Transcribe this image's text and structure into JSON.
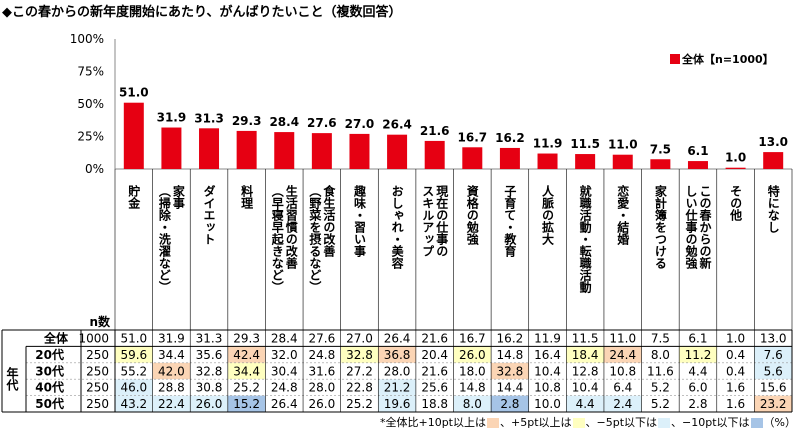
{
  "title": "◆この春からの新年度開始にあたり、がんばりたいこと（複数回答）",
  "colors": {
    "bar": "#e60012",
    "plus10": "#fbd5b5",
    "plus5": "#ffffc0",
    "minus5": "#dcf0fa",
    "minus10": "#a6c4e6",
    "border": "#000000"
  },
  "chart_data": {
    "type": "bar",
    "yticks": [
      "100%",
      "75%",
      "50%",
      "25%",
      "0%"
    ],
    "ylim": [
      0,
      100
    ],
    "legend": {
      "label": "全体【n=1000】",
      "position": "top-right"
    },
    "categories": [
      "貯金",
      "家事（掃除・洗濯など）",
      "ダイエット",
      "料理",
      "生活習慣の改善（早寝早起きなど）",
      "食生活の改善（野菜を摂るなど）",
      "趣味・習い事",
      "おしゃれ・美容",
      "現在の仕事のスキルアップ",
      "資格の勉強",
      "子育て・教育",
      "人脈の拡大",
      "就職活動・転職活動",
      "恋愛・結婚",
      "家計簿をつける",
      "この春からの新しい仕事の勉強",
      "その他",
      "特になし"
    ],
    "values": [
      51.0,
      31.9,
      31.3,
      29.3,
      28.4,
      27.6,
      27.0,
      26.4,
      21.6,
      16.7,
      16.2,
      11.9,
      11.5,
      11.0,
      7.5,
      6.1,
      1.0,
      13.0
    ],
    "table": {
      "n_header": "n数",
      "group_label": "年代",
      "rows": [
        {
          "label": "全体",
          "n": "1000",
          "values": [
            "51.0",
            "31.9",
            "31.3",
            "29.3",
            "28.4",
            "27.6",
            "27.0",
            "26.4",
            "21.6",
            "16.7",
            "16.2",
            "11.9",
            "11.5",
            "11.0",
            "7.5",
            "6.1",
            "1.0",
            "13.0"
          ]
        },
        {
          "label": "20代",
          "n": "250",
          "values": [
            "59.6",
            "34.4",
            "35.6",
            "42.4",
            "32.0",
            "24.8",
            "32.8",
            "36.8",
            "20.4",
            "26.0",
            "14.8",
            "16.4",
            "18.4",
            "24.4",
            "8.0",
            "11.2",
            "0.4",
            "7.6"
          ]
        },
        {
          "label": "30代",
          "n": "250",
          "values": [
            "55.2",
            "42.0",
            "32.8",
            "34.4",
            "30.4",
            "31.6",
            "27.2",
            "28.0",
            "21.6",
            "18.0",
            "32.8",
            "10.4",
            "12.8",
            "10.8",
            "11.6",
            "4.4",
            "0.4",
            "5.6"
          ]
        },
        {
          "label": "40代",
          "n": "250",
          "values": [
            "46.0",
            "28.8",
            "30.8",
            "25.2",
            "24.8",
            "28.0",
            "22.8",
            "21.2",
            "25.6",
            "14.8",
            "14.4",
            "10.8",
            "10.4",
            "6.4",
            "5.2",
            "6.0",
            "1.6",
            "15.6"
          ]
        },
        {
          "label": "50代",
          "n": "250",
          "values": [
            "43.2",
            "22.4",
            "26.0",
            "15.2",
            "26.4",
            "26.0",
            "25.2",
            "19.6",
            "18.8",
            "8.0",
            "2.8",
            "10.0",
            "4.4",
            "2.4",
            "5.2",
            "2.8",
            "1.6",
            "23.2"
          ]
        }
      ]
    }
  },
  "footnote": {
    "prefix": "*全体比+10pt以上は",
    "sep1": "、+5pt以上は",
    "sep2": "、−5pt以下は",
    "sep3": "、−10pt以下は",
    "suffix": "（%）"
  }
}
